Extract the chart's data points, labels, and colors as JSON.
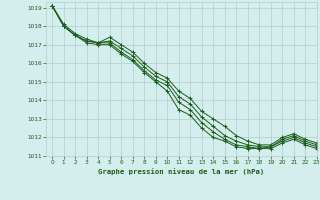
{
  "background_color": "#d4eeee",
  "grid_color": "#b0cccc",
  "line_color": "#1a5c1a",
  "title": "Graphe pression niveau de la mer (hPa)",
  "xlim": [
    -0.5,
    23
  ],
  "ylim": [
    1011,
    1019.3
  ],
  "yticks": [
    1011,
    1012,
    1013,
    1014,
    1015,
    1016,
    1017,
    1018,
    1019
  ],
  "xticks": [
    0,
    1,
    2,
    3,
    4,
    5,
    6,
    7,
    8,
    9,
    10,
    11,
    12,
    13,
    14,
    15,
    16,
    17,
    18,
    19,
    20,
    21,
    22,
    23
  ],
  "series": [
    [
      1019.1,
      1018.0,
      1017.5,
      1017.1,
      1017.0,
      1017.0,
      1016.5,
      1016.1,
      1015.5,
      1015.0,
      1014.5,
      1013.5,
      1013.2,
      1012.5,
      1012.0,
      1011.8,
      1011.5,
      1011.4,
      1011.4,
      1011.4,
      1011.7,
      1011.9,
      1011.6,
      1011.4
    ],
    [
      1019.1,
      1018.0,
      1017.5,
      1017.2,
      1017.1,
      1017.1,
      1016.6,
      1016.2,
      1015.6,
      1015.1,
      1014.8,
      1013.9,
      1013.5,
      1012.8,
      1012.3,
      1011.9,
      1011.6,
      1011.5,
      1011.4,
      1011.5,
      1011.8,
      1012.0,
      1011.7,
      1011.5
    ],
    [
      1019.1,
      1018.0,
      1017.5,
      1017.2,
      1017.1,
      1017.2,
      1016.8,
      1016.4,
      1015.8,
      1015.3,
      1015.0,
      1014.2,
      1013.8,
      1013.1,
      1012.6,
      1012.1,
      1011.8,
      1011.6,
      1011.5,
      1011.5,
      1011.9,
      1012.1,
      1011.8,
      1011.6
    ],
    [
      1019.1,
      1018.1,
      1017.6,
      1017.3,
      1017.1,
      1017.4,
      1017.0,
      1016.6,
      1016.0,
      1015.5,
      1015.2,
      1014.5,
      1014.1,
      1013.4,
      1013.0,
      1012.6,
      1012.1,
      1011.8,
      1011.6,
      1011.6,
      1012.0,
      1012.2,
      1011.9,
      1011.7
    ]
  ]
}
